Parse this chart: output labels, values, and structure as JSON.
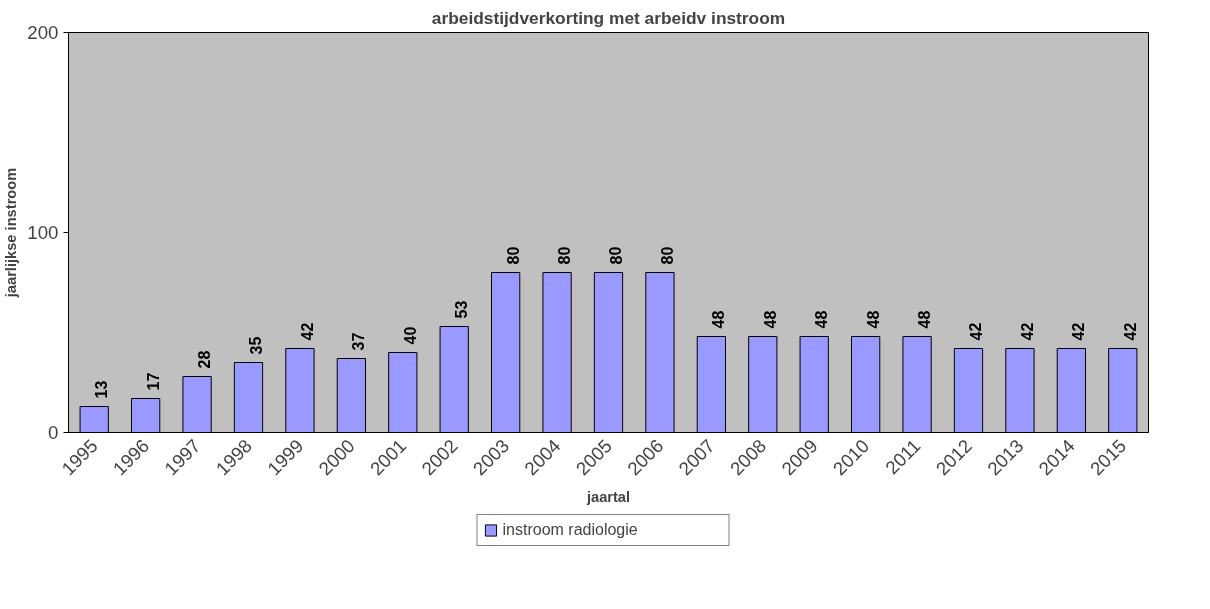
{
  "chart_data": {
    "type": "bar",
    "title": "arbeidstijdverkorting met arbeidv instroom",
    "xlabel": "jaartal",
    "ylabel": "jaarlijkse instroom",
    "categories": [
      "1995",
      "1996",
      "1997",
      "1998",
      "1999",
      "2000",
      "2001",
      "2002",
      "2003",
      "2004",
      "2005",
      "2006",
      "2007",
      "2008",
      "2009",
      "2010",
      "2011",
      "2012",
      "2013",
      "2014",
      "2015"
    ],
    "series": [
      {
        "name": "instroom radiologie",
        "color": "#9999ff",
        "values": [
          13,
          17,
          28,
          35,
          42,
          37,
          40,
          53,
          80,
          80,
          80,
          80,
          48,
          48,
          48,
          48,
          48,
          42,
          42,
          42,
          42
        ]
      }
    ],
    "ylim": [
      0,
      200
    ],
    "yticks": [
      0,
      100,
      200
    ],
    "data_labels": true,
    "legend": "bottom",
    "grid": false
  }
}
